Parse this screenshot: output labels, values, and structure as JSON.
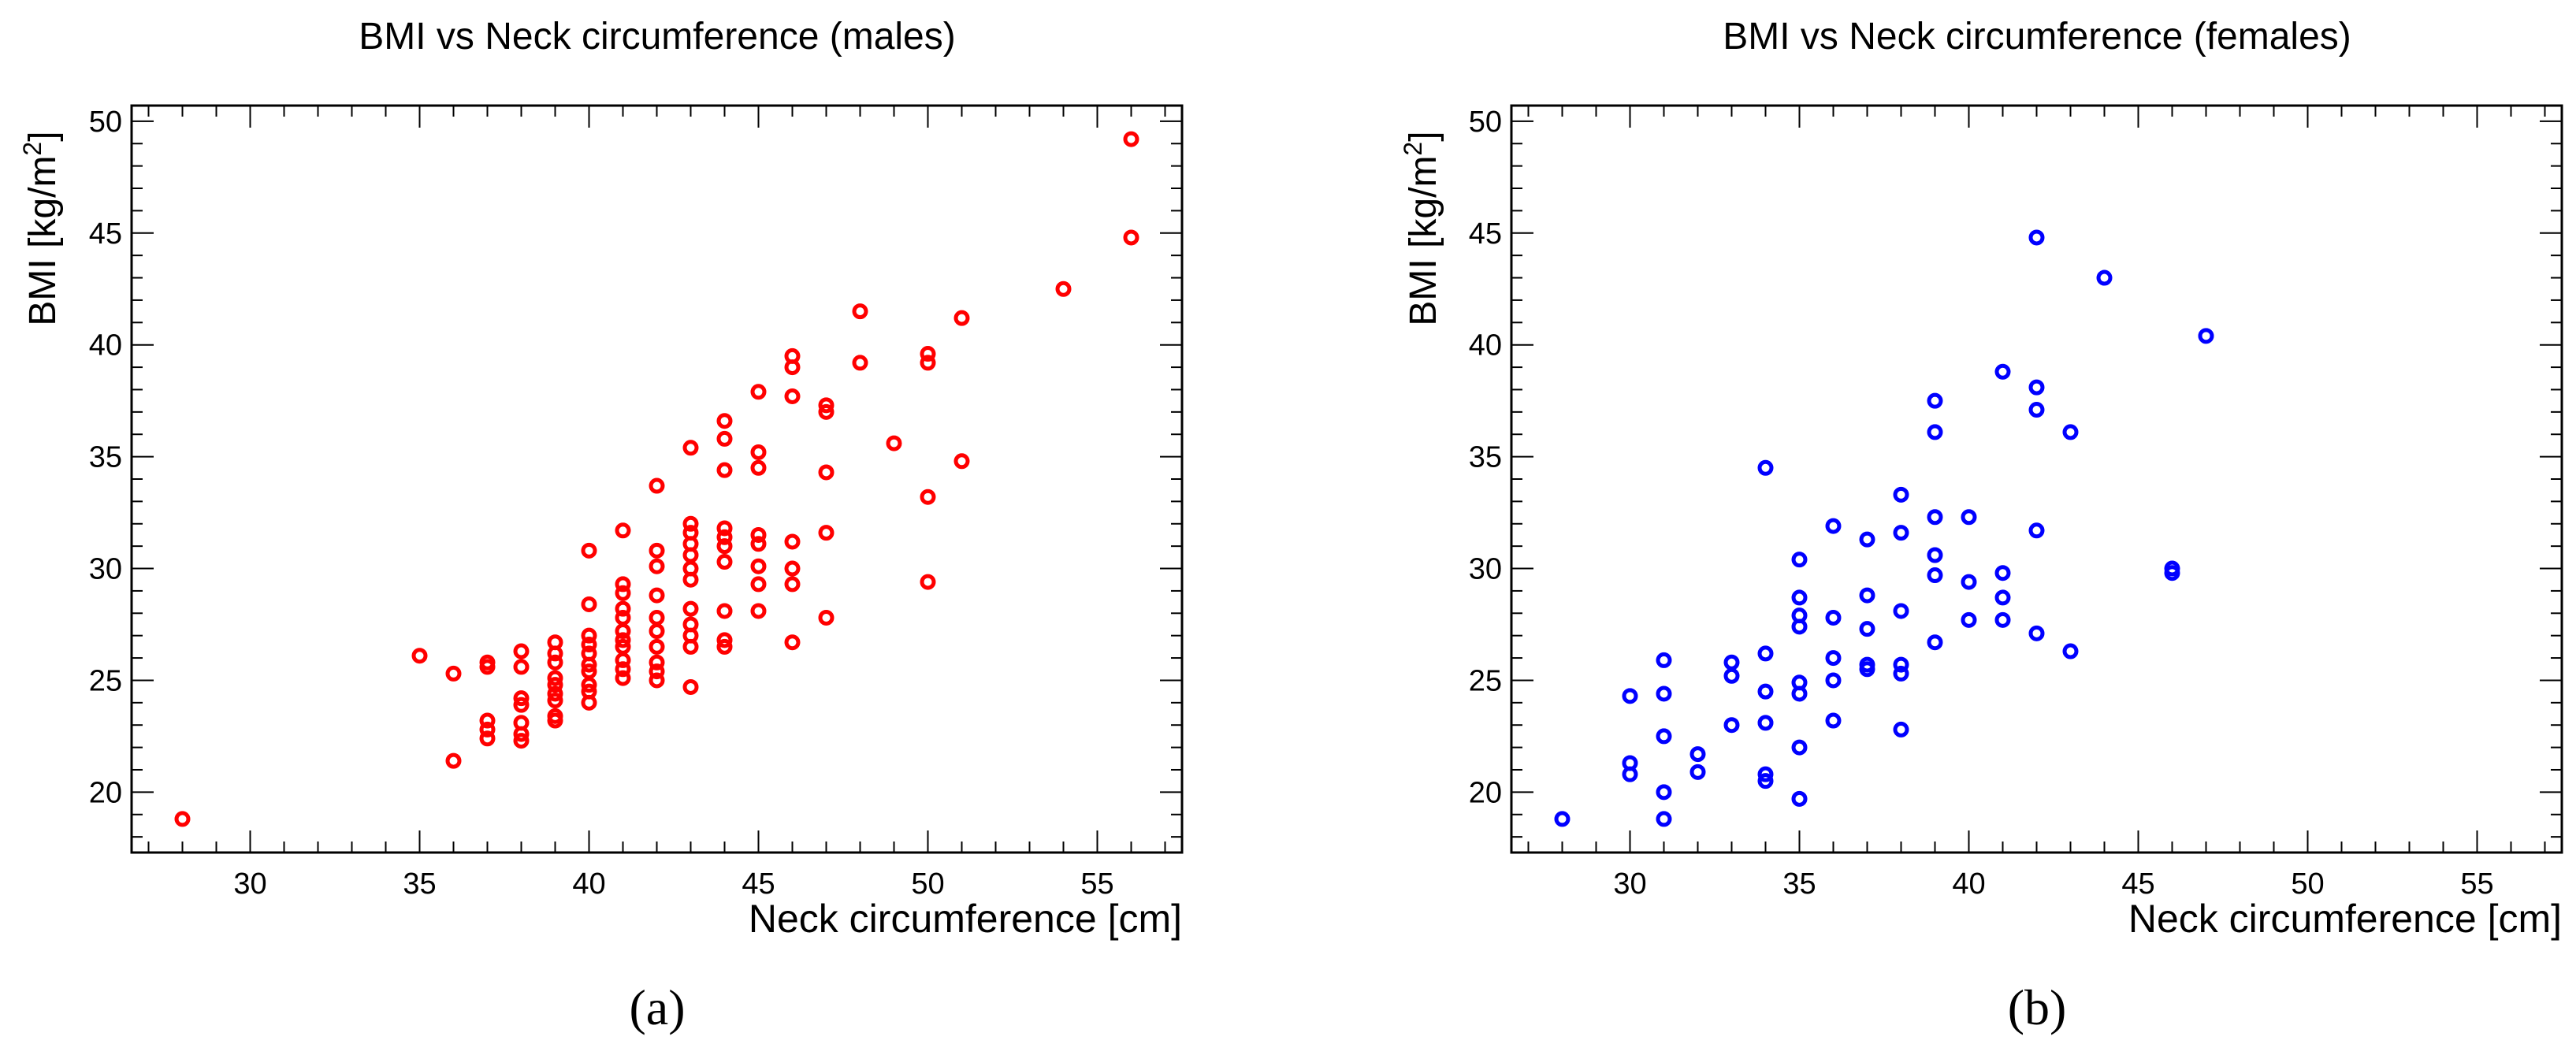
{
  "chart_data": [
    {
      "type": "scatter",
      "panel_label": "(a)",
      "title": "BMI vs Neck circumference (males)",
      "xlabel": "Neck circumference [cm]",
      "ylabel": "BMI [kg/m2]",
      "ylabel_main": "BMI [kg/m",
      "ylabel_sup": "2",
      "ylabel_close": "]",
      "xlim": [
        26.5,
        57.5
      ],
      "ylim": [
        17.3,
        50.7
      ],
      "xticks": [
        30,
        35,
        40,
        45,
        50,
        55
      ],
      "yticks": [
        20,
        25,
        30,
        35,
        40,
        45,
        50
      ],
      "color": "#ff0000",
      "series": [
        {
          "name": "males",
          "points": [
            [
              28,
              18.8
            ],
            [
              35,
              26.1
            ],
            [
              36,
              25.3
            ],
            [
              36,
              21.4
            ],
            [
              37,
              25.8
            ],
            [
              37,
              25.6
            ],
            [
              37,
              23.2
            ],
            [
              37,
              22.8
            ],
            [
              37,
              22.4
            ],
            [
              38,
              26.3
            ],
            [
              38,
              25.6
            ],
            [
              38,
              24.2
            ],
            [
              38,
              23.9
            ],
            [
              38,
              23.1
            ],
            [
              38,
              22.6
            ],
            [
              38,
              22.3
            ],
            [
              39,
              26.7
            ],
            [
              39,
              26.2
            ],
            [
              39,
              25.8
            ],
            [
              39,
              25.1
            ],
            [
              39,
              24.8
            ],
            [
              39,
              24.4
            ],
            [
              39,
              24.1
            ],
            [
              39,
              23.4
            ],
            [
              39,
              23.2
            ],
            [
              40,
              30.8
            ],
            [
              40,
              28.4
            ],
            [
              40,
              27.0
            ],
            [
              40,
              26.6
            ],
            [
              40,
              26.2
            ],
            [
              40,
              25.7
            ],
            [
              40,
              25.4
            ],
            [
              40,
              24.8
            ],
            [
              40,
              24.5
            ],
            [
              40,
              24.0
            ],
            [
              41,
              31.7
            ],
            [
              41,
              29.3
            ],
            [
              41,
              28.9
            ],
            [
              41,
              28.2
            ],
            [
              41,
              27.8
            ],
            [
              41,
              27.2
            ],
            [
              41,
              26.8
            ],
            [
              41,
              26.5
            ],
            [
              41,
              25.9
            ],
            [
              41,
              25.5
            ],
            [
              41,
              25.1
            ],
            [
              42,
              33.7
            ],
            [
              42,
              30.8
            ],
            [
              42,
              30.1
            ],
            [
              42,
              28.8
            ],
            [
              42,
              27.8
            ],
            [
              42,
              27.2
            ],
            [
              42,
              26.5
            ],
            [
              42,
              25.8
            ],
            [
              42,
              25.4
            ],
            [
              42,
              25.0
            ],
            [
              43,
              35.4
            ],
            [
              43,
              32.0
            ],
            [
              43,
              31.6
            ],
            [
              43,
              31.1
            ],
            [
              43,
              30.6
            ],
            [
              43,
              30.0
            ],
            [
              43,
              29.5
            ],
            [
              43,
              28.2
            ],
            [
              43,
              27.5
            ],
            [
              43,
              27.0
            ],
            [
              43,
              26.5
            ],
            [
              43,
              24.7
            ],
            [
              44,
              36.6
            ],
            [
              44,
              35.8
            ],
            [
              44,
              34.4
            ],
            [
              44,
              31.8
            ],
            [
              44,
              31.4
            ],
            [
              44,
              31.0
            ],
            [
              44,
              30.3
            ],
            [
              44,
              28.1
            ],
            [
              44,
              26.8
            ],
            [
              44,
              26.5
            ],
            [
              45,
              37.9
            ],
            [
              45,
              35.2
            ],
            [
              45,
              34.5
            ],
            [
              45,
              31.5
            ],
            [
              45,
              31.1
            ],
            [
              45,
              30.1
            ],
            [
              45,
              29.3
            ],
            [
              45,
              28.1
            ],
            [
              46,
              39.5
            ],
            [
              46,
              39.0
            ],
            [
              46,
              37.7
            ],
            [
              46,
              31.2
            ],
            [
              46,
              30.0
            ],
            [
              46,
              29.3
            ],
            [
              46,
              26.7
            ],
            [
              47,
              37.3
            ],
            [
              47,
              37.0
            ],
            [
              47,
              34.3
            ],
            [
              47,
              31.6
            ],
            [
              47,
              27.8
            ],
            [
              48,
              41.5
            ],
            [
              48,
              39.2
            ],
            [
              49,
              35.6
            ],
            [
              50,
              39.6
            ],
            [
              50,
              39.2
            ],
            [
              50,
              33.2
            ],
            [
              50,
              29.4
            ],
            [
              51,
              41.2
            ],
            [
              51,
              34.8
            ],
            [
              54,
              42.5
            ],
            [
              56,
              49.2
            ],
            [
              56,
              44.8
            ]
          ]
        }
      ]
    },
    {
      "type": "scatter",
      "panel_label": "(b)",
      "title": "BMI vs Neck circumference (females)",
      "xlabel": "Neck circumference [cm]",
      "ylabel": "BMI [kg/m2]",
      "ylabel_main": "BMI [kg/m",
      "ylabel_sup": "2",
      "ylabel_close": "]",
      "xlim": [
        26.5,
        57.5
      ],
      "ylim": [
        17.3,
        50.7
      ],
      "xticks": [
        30,
        35,
        40,
        45,
        50,
        55
      ],
      "yticks": [
        20,
        25,
        30,
        35,
        40,
        45,
        50
      ],
      "color": "#0000ff",
      "series": [
        {
          "name": "females",
          "points": [
            [
              28,
              18.8
            ],
            [
              30,
              24.3
            ],
            [
              30,
              21.3
            ],
            [
              30,
              20.8
            ],
            [
              31,
              25.9
            ],
            [
              31,
              24.4
            ],
            [
              31,
              22.5
            ],
            [
              31,
              20.0
            ],
            [
              31,
              18.8
            ],
            [
              32,
              21.7
            ],
            [
              32,
              20.9
            ],
            [
              33,
              25.8
            ],
            [
              33,
              25.2
            ],
            [
              33,
              23.0
            ],
            [
              34,
              34.5
            ],
            [
              34,
              26.2
            ],
            [
              34,
              24.5
            ],
            [
              34,
              23.1
            ],
            [
              34,
              20.8
            ],
            [
              34,
              20.5
            ],
            [
              35,
              30.4
            ],
            [
              35,
              28.7
            ],
            [
              35,
              27.9
            ],
            [
              35,
              27.4
            ],
            [
              35,
              24.9
            ],
            [
              35,
              24.4
            ],
            [
              35,
              22.0
            ],
            [
              35,
              19.7
            ],
            [
              36,
              31.9
            ],
            [
              36,
              27.8
            ],
            [
              36,
              26.0
            ],
            [
              36,
              25.0
            ],
            [
              36,
              23.2
            ],
            [
              37,
              31.3
            ],
            [
              37,
              28.8
            ],
            [
              37,
              27.3
            ],
            [
              37,
              25.7
            ],
            [
              37,
              25.5
            ],
            [
              38,
              33.3
            ],
            [
              38,
              31.6
            ],
            [
              38,
              28.1
            ],
            [
              38,
              25.7
            ],
            [
              38,
              25.3
            ],
            [
              38,
              22.8
            ],
            [
              39,
              37.5
            ],
            [
              39,
              36.1
            ],
            [
              39,
              32.3
            ],
            [
              39,
              30.6
            ],
            [
              39,
              29.7
            ],
            [
              39,
              26.7
            ],
            [
              40,
              32.3
            ],
            [
              40,
              29.4
            ],
            [
              40,
              27.7
            ],
            [
              41,
              38.8
            ],
            [
              41,
              29.8
            ],
            [
              41,
              28.7
            ],
            [
              41,
              27.7
            ],
            [
              42,
              44.8
            ],
            [
              42,
              38.1
            ],
            [
              42,
              37.1
            ],
            [
              42,
              31.7
            ],
            [
              42,
              27.1
            ],
            [
              43,
              36.1
            ],
            [
              43,
              26.3
            ],
            [
              44,
              43.0
            ],
            [
              46,
              30.0
            ],
            [
              46,
              29.8
            ],
            [
              47,
              40.4
            ]
          ]
        }
      ]
    }
  ]
}
